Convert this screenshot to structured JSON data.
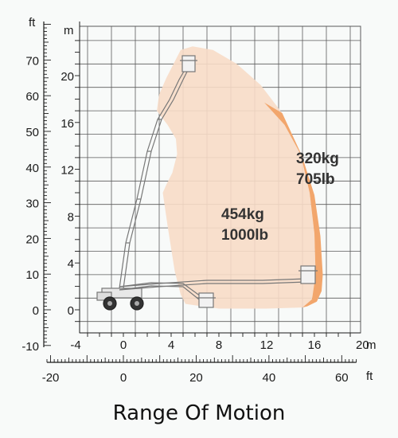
{
  "title": "Range Of Motion",
  "units": {
    "ft_top": "ft",
    "m_top": "m",
    "m_bottom": "m",
    "ft_bottom": "ft"
  },
  "axes": {
    "meters_y": {
      "ticks": [
        0,
        4,
        8,
        12,
        16,
        20
      ]
    },
    "feet_y": {
      "ticks": [
        -10,
        0,
        10,
        20,
        30,
        40,
        50,
        60,
        70
      ]
    },
    "meters_x": {
      "ticks": [
        -4,
        0,
        4,
        8,
        12,
        16,
        20
      ]
    },
    "feet_x": {
      "ticks": [
        -20,
        0,
        20,
        40,
        60
      ]
    },
    "grid": true
  },
  "loads": {
    "inner": {
      "line1": "454kg",
      "line2": "1000lb"
    },
    "outer": {
      "line1": "320kg",
      "line2": "705lb"
    }
  },
  "colors": {
    "inner_envelope": "#f7dcc6",
    "outer_envelope": "#f2a66c",
    "grid": "#5a5a5a",
    "boom": "#777777"
  },
  "envelopes": {
    "inner_m": [
      [
        4.8,
        22.2
      ],
      [
        5.8,
        22.5
      ],
      [
        7.5,
        22.2
      ],
      [
        9.5,
        21.0
      ],
      [
        11.5,
        19.2
      ],
      [
        13.3,
        16.8
      ],
      [
        14.8,
        13.5
      ],
      [
        15.6,
        10.0
      ],
      [
        16.0,
        6.5
      ],
      [
        16.1,
        3.0
      ],
      [
        15.8,
        0.9
      ],
      [
        15.0,
        0.2
      ],
      [
        12.0,
        0.1
      ],
      [
        8.0,
        0.1
      ],
      [
        5.2,
        0.5
      ],
      [
        4.8,
        1.3
      ],
      [
        4.3,
        3.3
      ],
      [
        3.7,
        7.2
      ],
      [
        3.3,
        10.0
      ],
      [
        3.6,
        10.7
      ],
      [
        4.1,
        11.7
      ],
      [
        4.5,
        13.3
      ],
      [
        4.4,
        14.6
      ],
      [
        3.7,
        15.8
      ],
      [
        2.8,
        17.0
      ],
      [
        3.0,
        18.4
      ],
      [
        3.6,
        19.8
      ],
      [
        4.2,
        21.0
      ]
    ],
    "outer_m": [
      [
        11.8,
        17.7
      ],
      [
        13.5,
        15.8
      ],
      [
        15.0,
        13.0
      ],
      [
        16.0,
        9.8
      ],
      [
        16.5,
        6.3
      ],
      [
        16.7,
        3.0
      ],
      [
        16.6,
        1.6
      ],
      [
        16.2,
        0.7
      ],
      [
        15.4,
        0.3
      ],
      [
        15.0,
        0.2
      ],
      [
        15.8,
        0.9
      ],
      [
        16.1,
        3.0
      ],
      [
        16.0,
        6.5
      ],
      [
        15.6,
        10.0
      ],
      [
        14.8,
        13.5
      ],
      [
        13.3,
        16.8
      ]
    ]
  }
}
